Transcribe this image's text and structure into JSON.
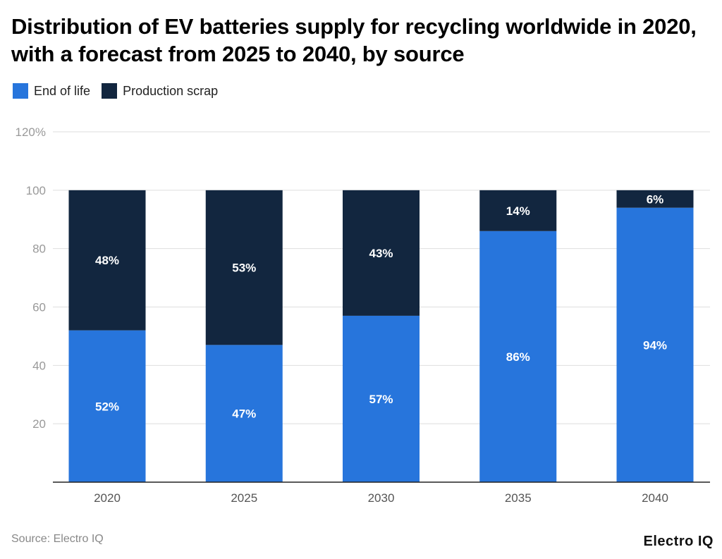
{
  "chart_data": {
    "type": "bar",
    "stacked": true,
    "title": "Distribution of EV batteries supply for recycling worldwide in 2020, with a forecast from 2025 to 2040, by source",
    "categories": [
      "2020",
      "2025",
      "2030",
      "2035",
      "2040"
    ],
    "series": [
      {
        "name": "End of life",
        "color": "#2775dc",
        "values": [
          52,
          47,
          57,
          86,
          94
        ],
        "labels": [
          "52%",
          "47%",
          "57%",
          "86%",
          "94%"
        ]
      },
      {
        "name": "Production scrap",
        "color": "#12263f",
        "values": [
          48,
          53,
          43,
          14,
          6
        ],
        "labels": [
          "48%",
          "53%",
          "43%",
          "14%",
          "6%"
        ]
      }
    ],
    "ylim": [
      0,
      120
    ],
    "yticks": [
      20,
      40,
      60,
      80,
      100,
      120
    ],
    "ytick_labels": [
      "20",
      "40",
      "60",
      "80",
      "100",
      "120%"
    ],
    "grid": true,
    "legend_position": "top-left",
    "xlabel": "",
    "ylabel": ""
  },
  "source": "Source: Electro IQ",
  "logo": "Electro IQ"
}
